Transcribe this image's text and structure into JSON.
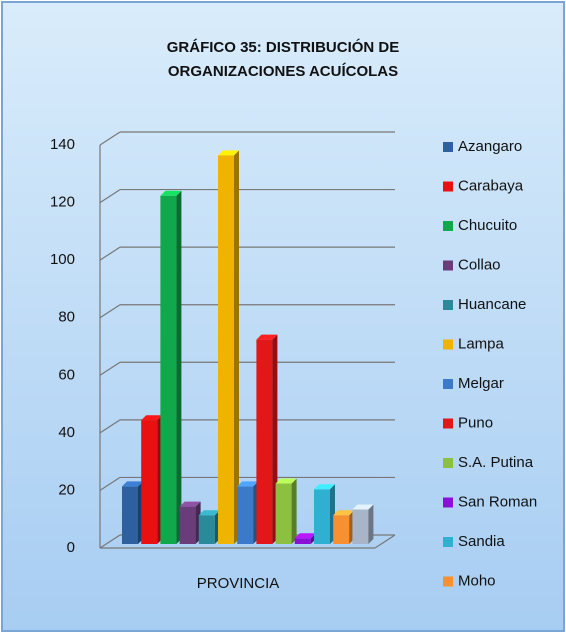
{
  "chart_data": {
    "type": "bar3d",
    "title": "GRÁFICO  35: DISTRIBUCIÓN DE",
    "subtitle": "ORGANIZACIONES ACUÍCOLAS",
    "categories": [
      "PROVINCIA"
    ],
    "ylim": [
      0,
      140
    ],
    "yticks": [
      0,
      20,
      40,
      60,
      80,
      100,
      120,
      140
    ],
    "grid": true,
    "legend": "right",
    "series": [
      {
        "name": "Azangaro",
        "color": "#2e5f9e",
        "values": [
          20
        ]
      },
      {
        "name": "Carabaya",
        "color": "#e81010",
        "values": [
          43
        ]
      },
      {
        "name": "Chucuito",
        "color": "#10a84a",
        "values": [
          121
        ]
      },
      {
        "name": "Collao",
        "color": "#6a3d7a",
        "values": [
          13
        ]
      },
      {
        "name": "Huancane",
        "color": "#2a8a9a",
        "values": [
          10
        ]
      },
      {
        "name": "Lampa",
        "color": "#f0b400",
        "values": [
          135
        ]
      },
      {
        "name": "Melgar",
        "color": "#3a7ac8",
        "values": [
          20
        ]
      },
      {
        "name": "Puno",
        "color": "#e01818",
        "values": [
          71
        ]
      },
      {
        "name": "S.A. Putina",
        "color": "#8cc040",
        "values": [
          21
        ]
      },
      {
        "name": "San Roman",
        "color": "#8a10d8",
        "values": [
          2
        ]
      },
      {
        "name": "Sandia",
        "color": "#30b0d0",
        "values": [
          19
        ]
      },
      {
        "name": "Moho",
        "color": "#f79030",
        "values": [
          10
        ]
      },
      {
        "name": null,
        "color": "#a8b4c8",
        "values": [
          12
        ]
      }
    ]
  }
}
